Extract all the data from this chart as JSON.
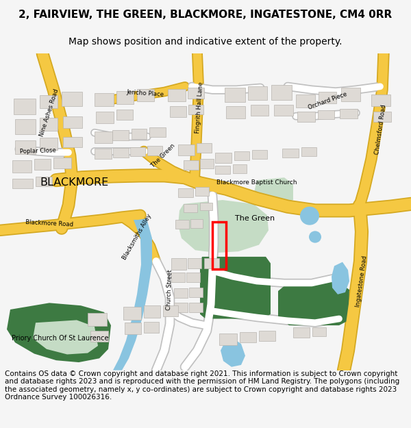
{
  "title_line1": "2, FAIRVIEW, THE GREEN, BLACKMORE, INGATESTONE, CM4 0RR",
  "title_line2": "Map shows position and indicative extent of the property.",
  "copyright_text": "Contains OS data © Crown copyright and database right 2021. This information is subject to Crown copyright and database rights 2023 and is reproduced with the permission of HM Land Registry. The polygons (including the associated geometry, namely x, y co-ordinates) are subject to Crown copyright and database rights 2023 Ordnance Survey 100026316.",
  "bg_color": "#f5f5f5",
  "map_bg": "#ffffff",
  "road_yellow": "#f5c842",
  "road_yellow_stroke": "#d4a820",
  "road_white": "#ffffff",
  "road_stroke": "#c0c0c0",
  "building_fill": "#dedad5",
  "building_stroke": "#b8b4af",
  "green_dark": "#3d7a42",
  "green_light": "#c5dcc5",
  "water": "#89c4e0",
  "title_fs": 11,
  "sub_fs": 10,
  "copy_fs": 7.5
}
